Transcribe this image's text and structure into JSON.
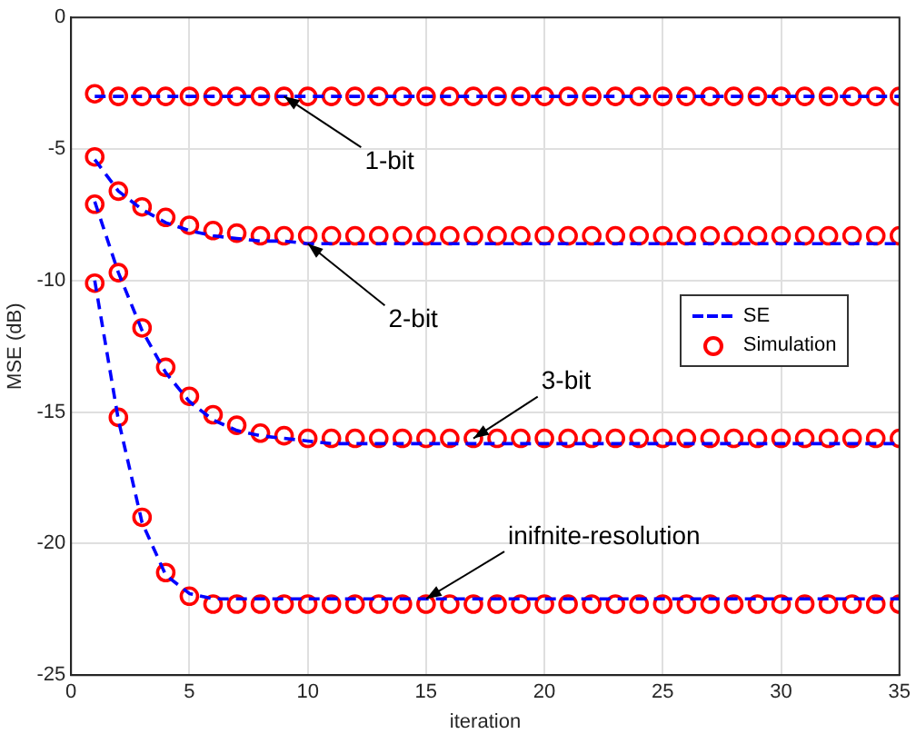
{
  "chart_data": {
    "type": "line",
    "xlabel": "iteration",
    "ylabel": "MSE (dB)",
    "x": [
      1,
      2,
      3,
      4,
      5,
      6,
      7,
      8,
      9,
      10,
      11,
      12,
      13,
      14,
      15,
      16,
      17,
      18,
      19,
      20,
      21,
      22,
      23,
      24,
      25,
      26,
      27,
      28,
      29,
      30,
      31,
      32,
      33,
      34,
      35
    ],
    "xlim": [
      0,
      35
    ],
    "xticks": [
      0,
      5,
      10,
      15,
      20,
      25,
      30,
      35
    ],
    "ylim": [
      -25,
      0
    ],
    "yticks": [
      -25,
      -20,
      -15,
      -10,
      -5,
      0
    ],
    "grid": true,
    "legend": "right",
    "series": [
      {
        "name": "SE",
        "line_style": "dashed",
        "marker": "none",
        "color": "#0000ff",
        "values": [
          -3,
          -3,
          -3,
          -3,
          -3,
          -3,
          -3,
          -3,
          -3,
          -3,
          -3,
          -3,
          -3,
          -3,
          -3,
          -3,
          -3,
          -3,
          -3,
          -3,
          -3,
          -3,
          -3,
          -3,
          -3,
          -3,
          -3,
          -3,
          -3,
          -3,
          -3,
          -3,
          -3,
          -3,
          -3
        ]
      },
      {
        "name": "Simulation",
        "type": "scatter",
        "marker": "circle",
        "color": "#ff0000",
        "values": [
          -2.9,
          -3,
          -3,
          -3,
          -3,
          -3,
          -3,
          -3,
          -3,
          -3,
          -3,
          -3,
          -3,
          -3,
          -3,
          -3,
          -3,
          -3,
          -3,
          -3,
          -3,
          -3,
          -3,
          -3,
          -3,
          -3,
          -3,
          -3,
          -3,
          -3,
          -3,
          -3,
          -3,
          -3,
          -3
        ]
      },
      {
        "line_style": "dashed",
        "marker": "none",
        "color": "#0000ff",
        "values": [
          -5.4,
          -6.6,
          -7.3,
          -7.8,
          -8.1,
          -8.3,
          -8.4,
          -8.5,
          -8.5,
          -8.6,
          -8.6,
          -8.6,
          -8.6,
          -8.6,
          -8.6,
          -8.6,
          -8.6,
          -8.6,
          -8.6,
          -8.6,
          -8.6,
          -8.6,
          -8.6,
          -8.6,
          -8.6,
          -8.6,
          -8.6,
          -8.6,
          -8.6,
          -8.6,
          -8.6,
          -8.6,
          -8.6,
          -8.6,
          -8.6
        ]
      },
      {
        "type": "scatter",
        "marker": "circle",
        "color": "#ff0000",
        "values": [
          -5.3,
          -6.6,
          -7.2,
          -7.6,
          -7.9,
          -8.1,
          -8.2,
          -8.3,
          -8.3,
          -8.3,
          -8.3,
          -8.3,
          -8.3,
          -8.3,
          -8.3,
          -8.3,
          -8.3,
          -8.3,
          -8.3,
          -8.3,
          -8.3,
          -8.3,
          -8.3,
          -8.3,
          -8.3,
          -8.3,
          -8.3,
          -8.3,
          -8.3,
          -8.3,
          -8.3,
          -8.3,
          -8.3,
          -8.3,
          -8.3
        ]
      },
      {
        "line_style": "dashed",
        "marker": "none",
        "color": "#0000ff",
        "values": [
          -7,
          -9.7,
          -11.9,
          -13.5,
          -14.6,
          -15.3,
          -15.7,
          -15.9,
          -16,
          -16.1,
          -16.2,
          -16.2,
          -16.2,
          -16.2,
          -16.2,
          -16.2,
          -16.2,
          -16.2,
          -16.2,
          -16.2,
          -16.2,
          -16.2,
          -16.2,
          -16.2,
          -16.2,
          -16.2,
          -16.2,
          -16.2,
          -16.2,
          -16.2,
          -16.2,
          -16.2,
          -16.2,
          -16.2,
          -16.2
        ]
      },
      {
        "type": "scatter",
        "marker": "circle",
        "color": "#ff0000",
        "values": [
          -7.1,
          -9.7,
          -11.8,
          -13.3,
          -14.4,
          -15.1,
          -15.5,
          -15.8,
          -15.9,
          -16,
          -16,
          -16,
          -16,
          -16,
          -16,
          -16,
          -16,
          -16,
          -16,
          -16,
          -16,
          -16,
          -16,
          -16,
          -16,
          -16,
          -16,
          -16,
          -16,
          -16,
          -16,
          -16,
          -16,
          -16,
          -16
        ]
      },
      {
        "line_style": "dashed",
        "marker": "none",
        "color": "#0000ff",
        "values": [
          -10,
          -15.3,
          -19.2,
          -21.2,
          -21.9,
          -22.1,
          -22.1,
          -22.1,
          -22.1,
          -22.1,
          -22.1,
          -22.1,
          -22.1,
          -22.1,
          -22.1,
          -22.1,
          -22.1,
          -22.1,
          -22.1,
          -22.1,
          -22.1,
          -22.1,
          -22.1,
          -22.1,
          -22.1,
          -22.1,
          -22.1,
          -22.1,
          -22.1,
          -22.1,
          -22.1,
          -22.1,
          -22.1,
          -22.1,
          -22.1
        ]
      },
      {
        "type": "scatter",
        "marker": "circle",
        "color": "#ff0000",
        "values": [
          -10.1,
          -15.2,
          -19,
          -21.1,
          -22,
          -22.3,
          -22.3,
          -22.3,
          -22.3,
          -22.3,
          -22.3,
          -22.3,
          -22.3,
          -22.3,
          -22.3,
          -22.3,
          -22.3,
          -22.3,
          -22.3,
          -22.3,
          -22.3,
          -22.3,
          -22.3,
          -22.3,
          -22.3,
          -22.3,
          -22.3,
          -22.3,
          -22.3,
          -22.3,
          -22.3,
          -22.3,
          -22.3,
          -22.3,
          -22.3
        ]
      }
    ],
    "annotations": [
      {
        "text": "1-bit",
        "x": 9,
        "y": -3
      },
      {
        "text": "2-bit",
        "x": 10,
        "y": -8.6
      },
      {
        "text": "3-bit",
        "x": 17,
        "y": -16
      },
      {
        "text": "inifnite-resolution",
        "x": 15,
        "y": -22.1
      }
    ]
  }
}
